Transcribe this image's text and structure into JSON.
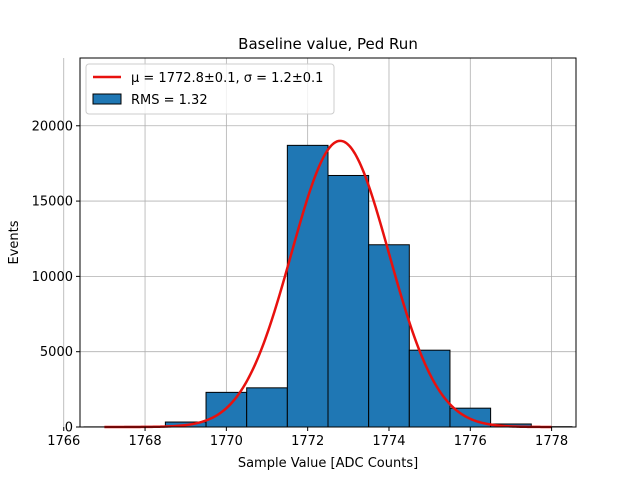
{
  "chart_data": {
    "type": "bar",
    "title": "Baseline value, Ped Run",
    "xlabel": "Sample Value [ADC Counts]",
    "ylabel": "Events",
    "xlim": [
      1766.4,
      1778.6
    ],
    "ylim": [
      0,
      24500
    ],
    "x_ticks": [
      1766,
      1768,
      1770,
      1772,
      1774,
      1776,
      1778
    ],
    "y_ticks": [
      0,
      5000,
      10000,
      15000,
      20000
    ],
    "grid": true,
    "legend_position": "top-left",
    "histogram": {
      "name": "RMS = 1.32",
      "color": "#1f77b4",
      "edge_color": "#000000",
      "bins": [
        {
          "x0": 1766.5,
          "x1": 1767.5,
          "count": 8
        },
        {
          "x0": 1767.5,
          "x1": 1768.5,
          "count": 40
        },
        {
          "x0": 1768.5,
          "x1": 1769.5,
          "count": 330
        },
        {
          "x0": 1769.5,
          "x1": 1770.5,
          "count": 2300
        },
        {
          "x0": 1770.5,
          "x1": 1771.5,
          "count": 2600
        },
        {
          "x0": 1771.5,
          "x1": 1772.5,
          "count": 18700
        },
        {
          "x0": 1772.5,
          "x1": 1773.5,
          "count": 16700
        },
        {
          "x0": 1773.5,
          "x1": 1774.5,
          "count": 12100
        },
        {
          "x0": 1774.5,
          "x1": 1775.5,
          "count": 5100
        },
        {
          "x0": 1775.5,
          "x1": 1776.5,
          "count": 1250
        },
        {
          "x0": 1776.5,
          "x1": 1777.5,
          "count": 200
        },
        {
          "x0": 1777.5,
          "x1": 1778.5,
          "count": 20
        }
      ]
    },
    "fit": {
      "name": "μ = 1772.8±0.1, σ = 1.2±0.1",
      "color": "#e8110e",
      "mu": 1772.8,
      "sigma": 1.2,
      "amplitude": 19000,
      "x_range": [
        1767.0,
        1778.0
      ]
    }
  }
}
